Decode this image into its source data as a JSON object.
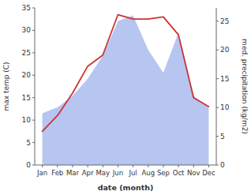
{
  "chart_data": {
    "type": "line",
    "categories": [
      "Jan",
      "Feb",
      "Mar",
      "Apr",
      "May",
      "Jun",
      "Jul",
      "Aug",
      "Sep",
      "Oct",
      "Nov",
      "Dec"
    ],
    "xlabel": "date (month)",
    "ylabel": "max temp (C)",
    "y2label": "med. precipitation (kg/m2)",
    "series": [
      {
        "type": "area",
        "axis": "y2",
        "color": "#aabbee",
        "values": [
          9,
          10,
          12,
          15,
          19,
          25,
          26,
          20,
          16,
          23,
          12,
          10
        ]
      },
      {
        "type": "line",
        "color": "#cc3333",
        "values": [
          7.5,
          11.0,
          16.0,
          22.0,
          24.5,
          33.5,
          32.5,
          32.5,
          33.0,
          29.0,
          15.0,
          13.0
        ]
      }
    ],
    "ylim": [
      0,
      35
    ],
    "yticks": [
      0,
      5,
      10,
      15,
      20,
      25,
      30,
      35
    ],
    "y2lim": [
      0,
      27.3
    ],
    "y2ticks": [
      0,
      5,
      10,
      15,
      20,
      25
    ],
    "grid": false
  }
}
